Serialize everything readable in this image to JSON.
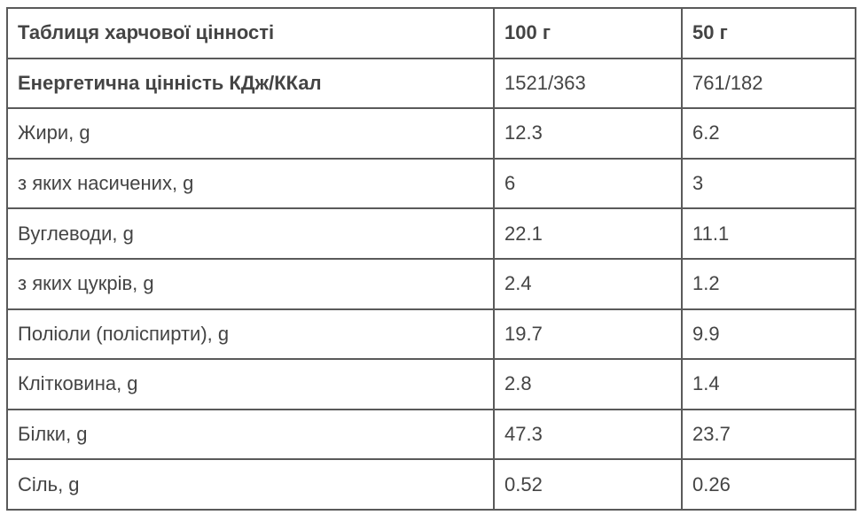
{
  "table": {
    "header": [
      "Таблиця харчової цінності",
      "100 г",
      "50 г"
    ],
    "rows": [
      [
        "Енергетична цінність КДж/ККал",
        "1521/363",
        "761/182"
      ],
      [
        "Жири, g",
        "12.3",
        "6.2"
      ],
      [
        "з яких насичених, g",
        "6",
        "3"
      ],
      [
        "Вуглеводи, g",
        "22.1",
        "11.1"
      ],
      [
        "з яких цукрів, g",
        "2.4",
        "1.2"
      ],
      [
        "Поліоли (поліспирти), g",
        "19.7",
        "9.9"
      ],
      [
        "Клітковина, g",
        "2.8",
        "1.4"
      ],
      [
        "Білки, g",
        "47.3",
        "23.7"
      ],
      [
        "Сіль, g",
        "0.52",
        "0.26"
      ]
    ]
  }
}
